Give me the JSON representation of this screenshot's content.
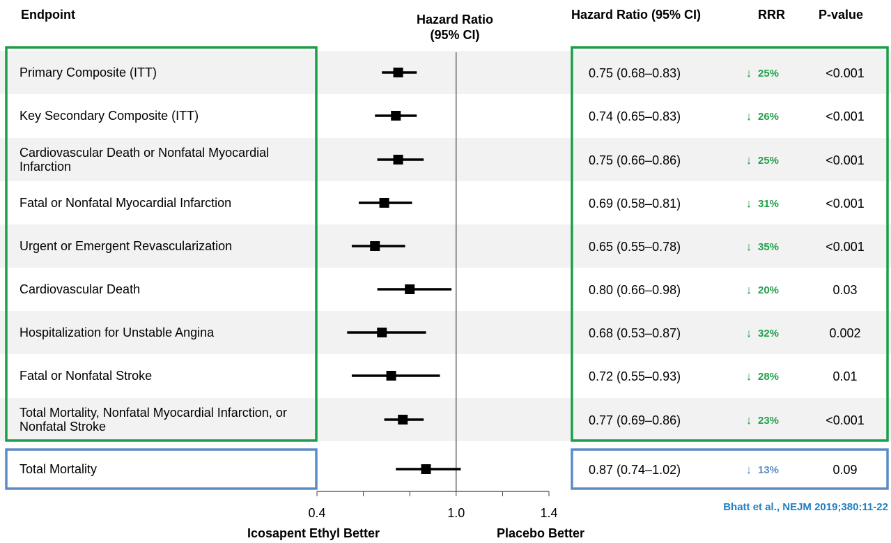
{
  "chart_data": {
    "type": "forest",
    "headers": {
      "endpoint": "Endpoint",
      "plot": "Hazard Ratio (95% CI)",
      "ci": "Hazard Ratio (95% CI)",
      "rrr": "RRR",
      "p": "P-value"
    },
    "categories": [
      "Primary Composite (ITT)",
      "Key Secondary Composite (ITT)",
      "Cardiovascular Death or Nonfatal Myocardial Infarction",
      "Fatal or Nonfatal Myocardial Infarction",
      "Urgent or Emergent Revascularization",
      "Cardiovascular Death",
      "Hospitalization for Unstable Angina",
      "Fatal or Nonfatal Stroke",
      "Total Mortality, Nonfatal Myocardial Infarction, or Nonfatal Stroke",
      "Total Mortality"
    ],
    "values": [
      0.75,
      0.74,
      0.75,
      0.69,
      0.65,
      0.8,
      0.68,
      0.72,
      0.77,
      0.87
    ],
    "lo": [
      0.68,
      0.65,
      0.66,
      0.58,
      0.55,
      0.66,
      0.53,
      0.55,
      0.69,
      0.74
    ],
    "hi": [
      0.83,
      0.83,
      0.86,
      0.81,
      0.78,
      0.98,
      0.87,
      0.93,
      0.86,
      1.02
    ],
    "ci_labels": [
      "0.75 (0.68–0.83)",
      "0.74 (0.65–0.83)",
      "0.75 (0.66–0.86)",
      "0.69 (0.58–0.81)",
      "0.65 (0.55–0.78)",
      "0.80 (0.66–0.98)",
      "0.68 (0.53–0.87)",
      "0.72 (0.55–0.93)",
      "0.77 (0.69–0.86)",
      "0.87 (0.74–1.02)"
    ],
    "rrr": {
      "values": [
        25,
        26,
        25,
        31,
        35,
        20,
        32,
        28,
        23,
        13
      ],
      "value_labels": [
        "25%",
        "26%",
        "25%",
        "31%",
        "35%",
        "20%",
        "32%",
        "28%",
        "23%",
        "13%"
      ]
    },
    "p_values": [
      "<0.001",
      "<0.001",
      "<0.001",
      "<0.001",
      "<0.001",
      "0.03",
      "0.002",
      "0.01",
      "<0.001",
      "0.09"
    ],
    "row_colors": [
      "#1a9e48",
      "#1a9e48",
      "#1a9e48",
      "#1a9e48",
      "#1a9e48",
      "#1a9e48",
      "#1a9e48",
      "#1a9e48",
      "#1a9e48",
      "#5b8bc6"
    ],
    "xlim": [
      0.4,
      1.4
    ],
    "xticks": [
      {
        "value": 0.4,
        "label": "0.4"
      },
      {
        "value": 1,
        "label": "1.0"
      },
      {
        "value": 1.4,
        "label": "1.4"
      }
    ],
    "xticks_minor": [
      0.6,
      0.8,
      1.2
    ],
    "reference": 1,
    "xlabel_left": "Icosapent Ethyl Better",
    "xlabel_right": "Placebo Better",
    "citation": "Bhatt et al., NEJM 2019;380:11-22"
  }
}
